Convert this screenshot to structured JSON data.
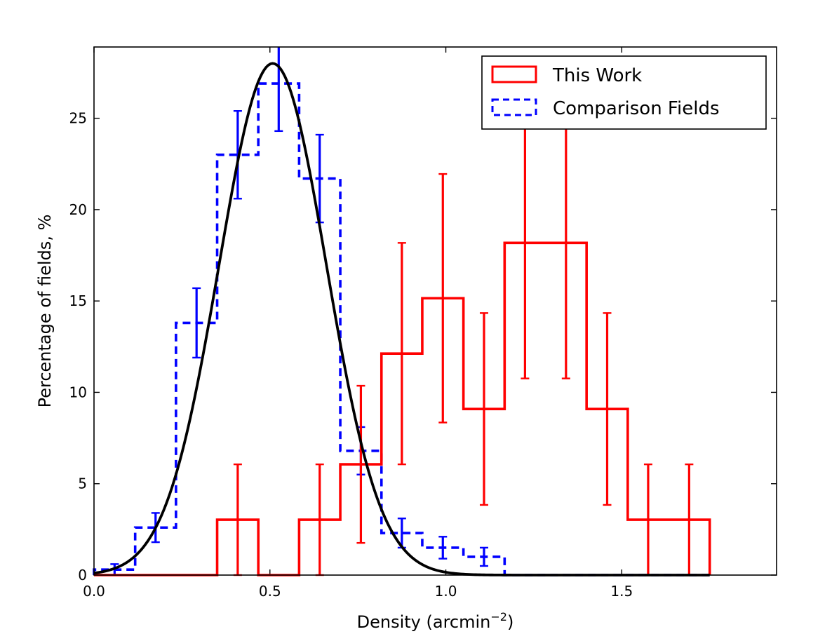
{
  "chart_data": {
    "type": "histogram",
    "title": "",
    "xlabel": "Density (arcmin",
    "xlabel_sup": "−2",
    "xlabel_close": ")",
    "ylabel": "Percentage of fields, %",
    "xlim": [
      0,
      1.94
    ],
    "ylim": [
      0,
      28.9
    ],
    "xticks": [
      0.0,
      0.5,
      1.0,
      1.5
    ],
    "xtick_labels": [
      "0.0",
      "0.5",
      "1.0",
      "1.5"
    ],
    "yticks": [
      0,
      5,
      10,
      15,
      20,
      25
    ],
    "ytick_labels": [
      "0",
      "5",
      "10",
      "15",
      "20",
      "25"
    ],
    "bin_edges": [
      0.0,
      0.117,
      0.233,
      0.35,
      0.467,
      0.583,
      0.7,
      0.817,
      0.933,
      1.05,
      1.167,
      1.283,
      1.4,
      1.517,
      1.633,
      1.75
    ],
    "series": [
      {
        "name": "This Work",
        "color": "#ff0000",
        "style": "solid",
        "values": [
          0,
          0,
          0,
          3.03,
          0,
          3.03,
          6.06,
          12.12,
          15.15,
          9.09,
          18.18,
          18.18,
          9.09,
          3.03,
          3.03
        ],
        "errors": [
          null,
          null,
          null,
          3.03,
          null,
          3.03,
          4.3,
          6.06,
          6.8,
          5.25,
          7.42,
          7.42,
          5.25,
          3.03,
          3.03
        ]
      },
      {
        "name": "Comparison Fields",
        "color": "#0000ff",
        "style": "dashed",
        "values": [
          0.3,
          2.6,
          13.8,
          23.0,
          26.9,
          21.7,
          6.8,
          2.3,
          1.5,
          1.0,
          0,
          0,
          0,
          0,
          0
        ],
        "errors": [
          0.3,
          0.8,
          1.9,
          2.4,
          2.6,
          2.4,
          1.3,
          0.8,
          0.6,
          0.5,
          null,
          null,
          null,
          null,
          null
        ]
      }
    ],
    "fit_curve": {
      "name": "Gaussian fit",
      "color": "#000000",
      "mean": 0.508,
      "sigma": 0.1525,
      "amplitude": 28.0,
      "x_range": [
        0.0,
        1.75
      ]
    },
    "legend_position": "top-right"
  }
}
